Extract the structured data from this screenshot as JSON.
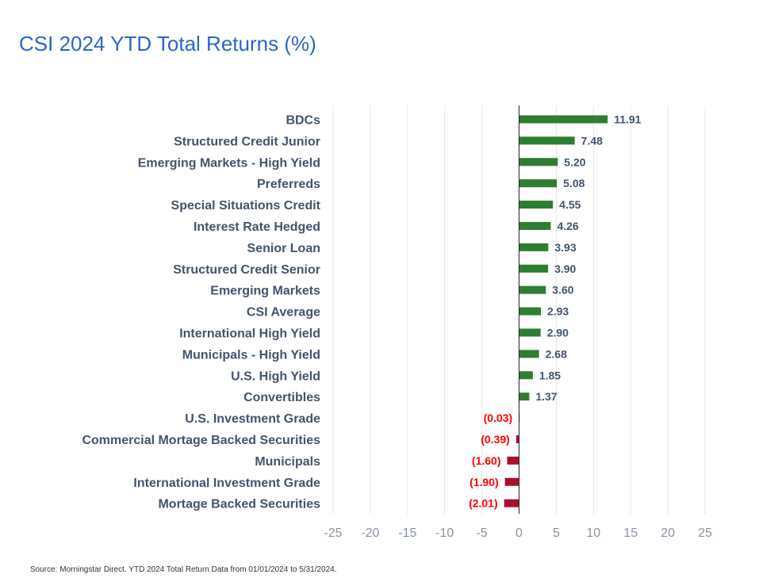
{
  "chart_data": {
    "type": "bar",
    "orientation": "horizontal",
    "title": "CSI 2024 YTD Total Returns (%)",
    "source": "Source: Morningstar Direct. YTD 2024 Total Return Data from 01/01/2024 to 5/31/2024.",
    "xlabel": "",
    "ylabel": "",
    "xlim": [
      -25,
      25
    ],
    "xticks": [
      -25,
      -20,
      -15,
      -10,
      -5,
      0,
      5,
      10,
      15,
      20,
      25
    ],
    "grid": true,
    "colors": {
      "positive": "#2e7d32",
      "negative": "#a8102e",
      "negative_label": "#ff0000",
      "positive_label": "#44546a"
    },
    "categories": [
      "BDCs",
      "Structured Credit Junior",
      "Emerging Markets - High Yield",
      "Preferreds",
      "Special Situations Credit",
      "Interest Rate Hedged",
      "Senior Loan",
      "Structured Credit Senior",
      "Emerging Markets",
      "CSI Average",
      "International High Yield",
      "Municipals - High Yield",
      "U.S. High Yield",
      "Convertibles",
      "U.S. Investment Grade",
      "Commercial Mortage Backed Securities",
      "Municipals",
      "International Investment Grade",
      "Mortage Backed Securities"
    ],
    "values": [
      11.91,
      7.48,
      5.2,
      5.08,
      4.55,
      4.26,
      3.93,
      3.9,
      3.6,
      2.93,
      2.9,
      2.68,
      1.85,
      1.37,
      -0.03,
      -0.39,
      -1.6,
      -1.9,
      -2.01
    ],
    "value_labels": [
      "11.91",
      "7.48",
      "5.20",
      "5.08",
      "4.55",
      "4.26",
      "3.93",
      "3.90",
      "3.60",
      "2.93",
      "2.90",
      "2.68",
      "1.85",
      "1.37",
      "(0.03)",
      "(0.39)",
      "(1.60)",
      "(1.90)",
      "(2.01)"
    ]
  }
}
